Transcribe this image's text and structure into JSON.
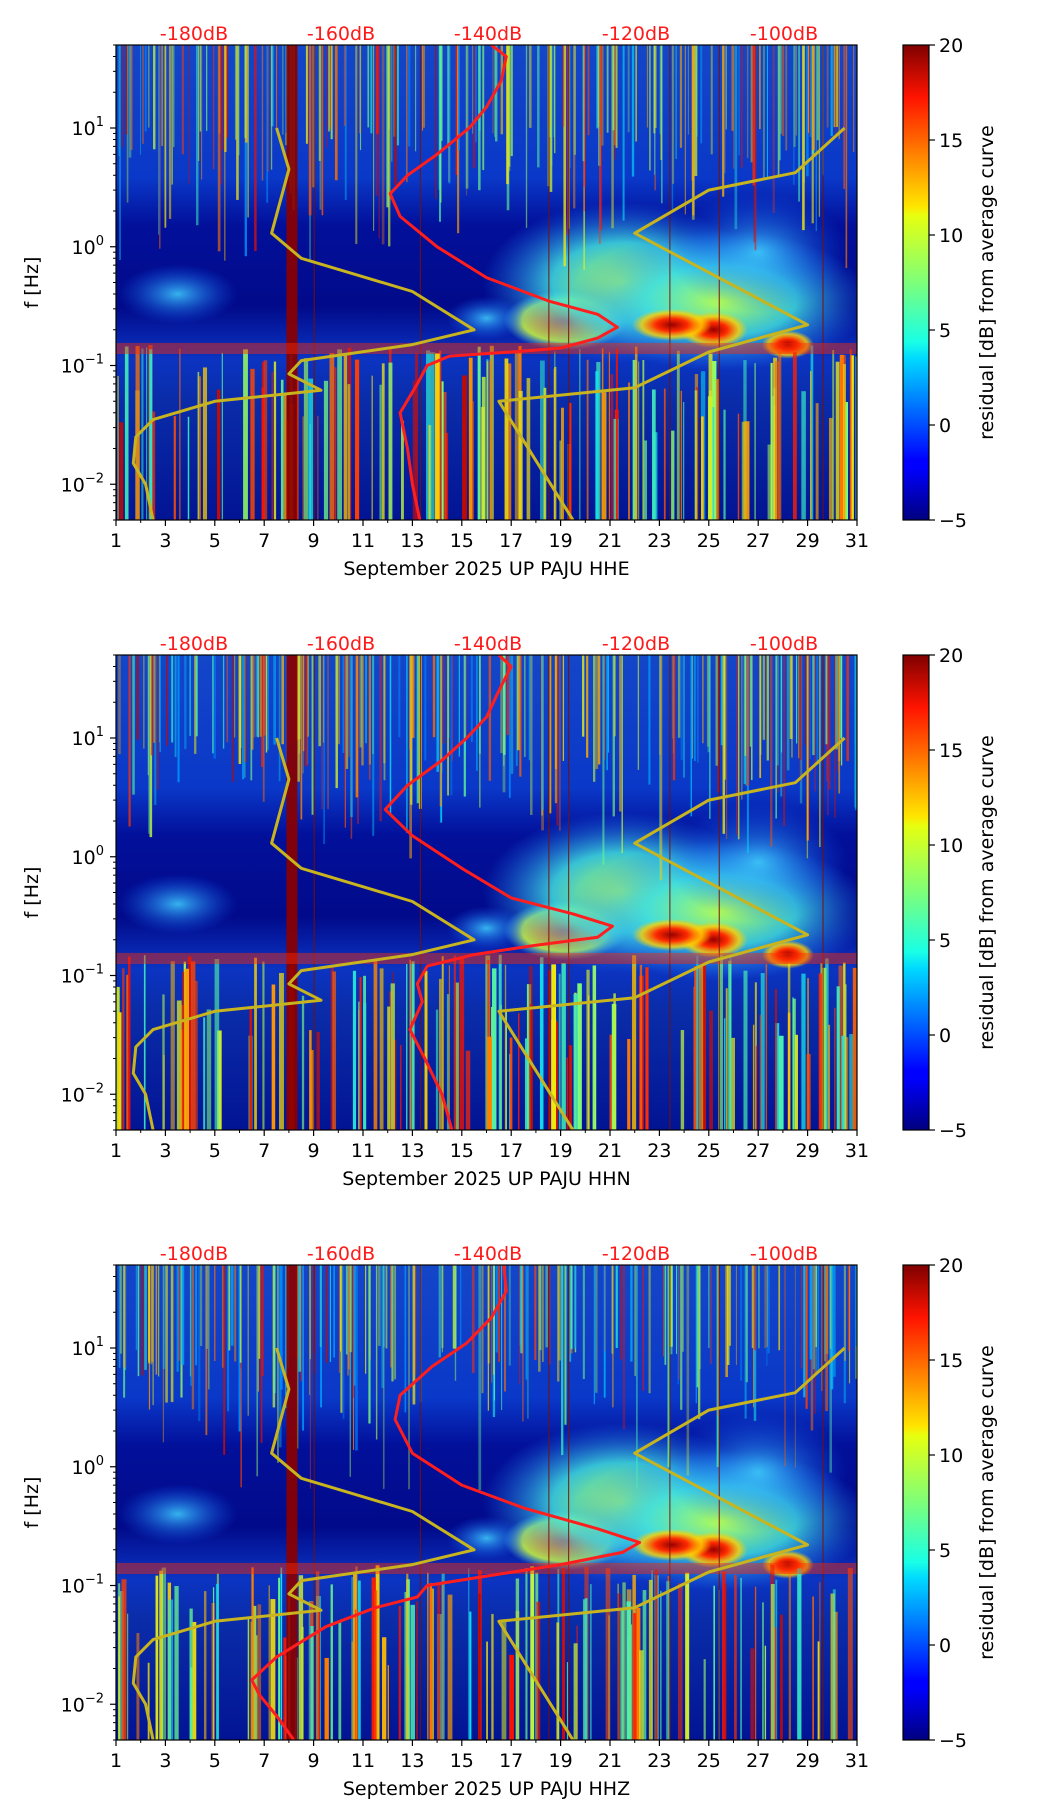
{
  "chart_data": [
    {
      "type": "heatmap",
      "xlabel": "September 2025 UP PAJU  HHE",
      "ylabel": "f [Hz]",
      "x_ticks": [
        "1",
        "3",
        "5",
        "7",
        "9",
        "11",
        "13",
        "15",
        "17",
        "19",
        "21",
        "23",
        "25",
        "27",
        "29",
        "31"
      ],
      "xlim": [
        1,
        31
      ],
      "y_scale": "log",
      "ylim": [
        0.005,
        50
      ],
      "y_ticks": [
        {
          "base": "10",
          "exp": "1"
        },
        {
          "base": "10",
          "exp": "0"
        },
        {
          "base": "10",
          "exp": "−1"
        },
        {
          "base": "10",
          "exp": "−2"
        }
      ],
      "db_labels": [
        "-180dB",
        "-160dB",
        "-140dB",
        "-120dB",
        "-100dB"
      ],
      "colorbar": {
        "label": "residual [dB] from average curve",
        "min": -5,
        "max": 20,
        "ticks": [
          "20",
          "15",
          "10",
          "5",
          "0",
          "−5"
        ],
        "colormap": "jet"
      },
      "curves": [
        {
          "color": "#ff1e1e",
          "points": [
            [
              13.3,
              0.005
            ],
            [
              13.0,
              0.01
            ],
            [
              12.8,
              0.02
            ],
            [
              12.5,
              0.04
            ],
            [
              13.2,
              0.07
            ],
            [
              13.6,
              0.1
            ],
            [
              14.5,
              0.12
            ],
            [
              17,
              0.13
            ],
            [
              19,
              0.14
            ],
            [
              20.5,
              0.17
            ],
            [
              21.3,
              0.21
            ],
            [
              20.5,
              0.27
            ],
            [
              18.5,
              0.35
            ],
            [
              16.0,
              0.55
            ],
            [
              14.0,
              1.0
            ],
            [
              12.5,
              1.8
            ],
            [
              12.1,
              2.8
            ],
            [
              12.8,
              4
            ],
            [
              14,
              6
            ],
            [
              15.3,
              10
            ],
            [
              16,
              15
            ],
            [
              16.6,
              25
            ],
            [
              16.8,
              40
            ],
            [
              16.2,
              50
            ]
          ]
        },
        {
          "color": "#c8b41e",
          "points": [
            [
              2.5,
              0.005
            ],
            [
              2.2,
              0.01
            ],
            [
              1.7,
              0.015
            ],
            [
              1.8,
              0.025
            ],
            [
              2.5,
              0.035
            ],
            [
              5.0,
              0.05
            ],
            [
              9.3,
              0.062
            ],
            [
              8.0,
              0.085
            ],
            [
              8.5,
              0.11
            ],
            [
              13,
              0.15
            ],
            [
              15.5,
              0.2
            ],
            [
              13,
              0.42
            ],
            [
              8.5,
              0.8
            ],
            [
              7.3,
              1.3
            ],
            [
              8.0,
              4.5
            ],
            [
              7.5,
              10
            ]
          ]
        },
        {
          "color": "#c8b41e",
          "points": [
            [
              19.5,
              0.005
            ],
            [
              16.5,
              0.05
            ],
            [
              22,
              0.065
            ],
            [
              25,
              0.13
            ],
            [
              29,
              0.22
            ],
            [
              22,
              1.3
            ],
            [
              25,
              3
            ],
            [
              28.5,
              4.2
            ],
            [
              30.5,
              10
            ]
          ]
        }
      ]
    },
    {
      "type": "heatmap",
      "xlabel": "September 2025 UP PAJU  HHN",
      "ylabel": "f [Hz]",
      "x_ticks": [
        "1",
        "3",
        "5",
        "7",
        "9",
        "11",
        "13",
        "15",
        "17",
        "19",
        "21",
        "23",
        "25",
        "27",
        "29",
        "31"
      ],
      "xlim": [
        1,
        31
      ],
      "y_scale": "log",
      "ylim": [
        0.005,
        50
      ],
      "y_ticks": [
        {
          "base": "10",
          "exp": "1"
        },
        {
          "base": "10",
          "exp": "0"
        },
        {
          "base": "10",
          "exp": "−1"
        },
        {
          "base": "10",
          "exp": "−2"
        }
      ],
      "db_labels": [
        "-180dB",
        "-160dB",
        "-140dB",
        "-120dB",
        "-100dB"
      ],
      "colorbar": {
        "label": "residual [dB] from average curve",
        "min": -5,
        "max": 20,
        "ticks": [
          "20",
          "15",
          "10",
          "5",
          "0",
          "−5"
        ],
        "colormap": "jet"
      },
      "curves": [
        {
          "color": "#ff1e1e",
          "points": [
            [
              14.6,
              0.005
            ],
            [
              14.2,
              0.01
            ],
            [
              13.5,
              0.02
            ],
            [
              12.9,
              0.035
            ],
            [
              13.4,
              0.06
            ],
            [
              13.2,
              0.085
            ],
            [
              13.6,
              0.12
            ],
            [
              15.5,
              0.15
            ],
            [
              18,
              0.18
            ],
            [
              20.5,
              0.21
            ],
            [
              21.1,
              0.26
            ],
            [
              19.5,
              0.33
            ],
            [
              17,
              0.45
            ],
            [
              15.0,
              0.8
            ],
            [
              13.0,
              1.5
            ],
            [
              11.9,
              2.5
            ],
            [
              12.8,
              4
            ],
            [
              14.2,
              6.5
            ],
            [
              15.2,
              10
            ],
            [
              16,
              15
            ],
            [
              16.5,
              25
            ],
            [
              17,
              40
            ],
            [
              16.5,
              50
            ]
          ]
        },
        {
          "color": "#c8b41e",
          "points": [
            [
              2.5,
              0.005
            ],
            [
              2.2,
              0.01
            ],
            [
              1.7,
              0.015
            ],
            [
              1.8,
              0.025
            ],
            [
              2.5,
              0.035
            ],
            [
              5.0,
              0.05
            ],
            [
              9.3,
              0.062
            ],
            [
              8.0,
              0.085
            ],
            [
              8.5,
              0.11
            ],
            [
              13,
              0.15
            ],
            [
              15.5,
              0.2
            ],
            [
              13,
              0.42
            ],
            [
              8.5,
              0.8
            ],
            [
              7.3,
              1.3
            ],
            [
              8.0,
              4.5
            ],
            [
              7.5,
              10
            ]
          ]
        },
        {
          "color": "#c8b41e",
          "points": [
            [
              19.5,
              0.005
            ],
            [
              16.5,
              0.05
            ],
            [
              22,
              0.065
            ],
            [
              25,
              0.13
            ],
            [
              29,
              0.22
            ],
            [
              22,
              1.3
            ],
            [
              25,
              3
            ],
            [
              28.5,
              4.2
            ],
            [
              30.5,
              10
            ]
          ]
        }
      ]
    },
    {
      "type": "heatmap",
      "xlabel": "September 2025 UP PAJU  HHZ",
      "ylabel": "f [Hz]",
      "x_ticks": [
        "1",
        "3",
        "5",
        "7",
        "9",
        "11",
        "13",
        "15",
        "17",
        "19",
        "21",
        "23",
        "25",
        "27",
        "29",
        "31"
      ],
      "xlim": [
        1,
        31
      ],
      "y_scale": "log",
      "ylim": [
        0.005,
        50
      ],
      "y_ticks": [
        {
          "base": "10",
          "exp": "1"
        },
        {
          "base": "10",
          "exp": "0"
        },
        {
          "base": "10",
          "exp": "−1"
        },
        {
          "base": "10",
          "exp": "−2"
        }
      ],
      "db_labels": [
        "-180dB",
        "-160dB",
        "-140dB",
        "-120dB",
        "-100dB"
      ],
      "colorbar": {
        "label": "residual [dB] from average curve",
        "min": -5,
        "max": 20,
        "ticks": [
          "20",
          "15",
          "10",
          "5",
          "0",
          "−5"
        ],
        "colormap": "jet"
      },
      "curves": [
        {
          "color": "#ff1e1e",
          "points": [
            [
              8.2,
              0.005
            ],
            [
              7.5,
              0.008
            ],
            [
              6.8,
              0.012
            ],
            [
              6.5,
              0.016
            ],
            [
              7.5,
              0.025
            ],
            [
              9.5,
              0.045
            ],
            [
              11.5,
              0.065
            ],
            [
              13.2,
              0.08
            ],
            [
              13.6,
              0.1
            ],
            [
              16,
              0.12
            ],
            [
              19,
              0.15
            ],
            [
              21.5,
              0.19
            ],
            [
              22.2,
              0.23
            ],
            [
              20.5,
              0.3
            ],
            [
              17.5,
              0.45
            ],
            [
              15,
              0.7
            ],
            [
              13,
              1.3
            ],
            [
              12.3,
              2.5
            ],
            [
              12.5,
              4
            ],
            [
              13.8,
              7
            ],
            [
              15.2,
              11
            ],
            [
              16.2,
              18
            ],
            [
              16.8,
              30
            ],
            [
              16.7,
              50
            ]
          ]
        },
        {
          "color": "#c8b41e",
          "points": [
            [
              2.5,
              0.005
            ],
            [
              2.2,
              0.01
            ],
            [
              1.7,
              0.015
            ],
            [
              1.8,
              0.025
            ],
            [
              2.5,
              0.035
            ],
            [
              5.0,
              0.05
            ],
            [
              9.3,
              0.062
            ],
            [
              8.0,
              0.085
            ],
            [
              8.5,
              0.11
            ],
            [
              13,
              0.15
            ],
            [
              15.5,
              0.2
            ],
            [
              13,
              0.42
            ],
            [
              8.5,
              0.8
            ],
            [
              7.3,
              1.3
            ],
            [
              8.0,
              4.5
            ],
            [
              7.5,
              10
            ]
          ]
        },
        {
          "color": "#c8b41e",
          "points": [
            [
              19.5,
              0.005
            ],
            [
              16.5,
              0.05
            ],
            [
              22,
              0.065
            ],
            [
              25,
              0.13
            ],
            [
              29,
              0.22
            ],
            [
              22,
              1.3
            ],
            [
              25,
              3
            ],
            [
              28.5,
              4.2
            ],
            [
              30.5,
              10
            ]
          ]
        }
      ]
    }
  ]
}
